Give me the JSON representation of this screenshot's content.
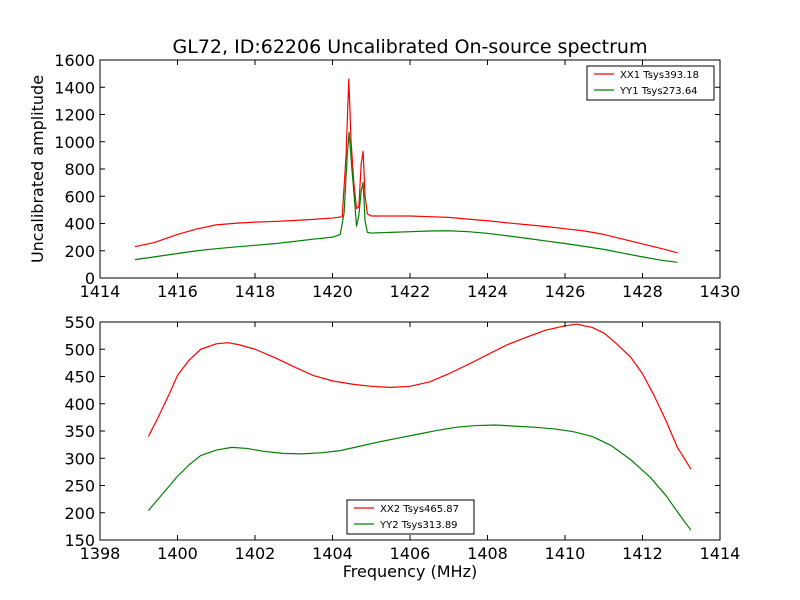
{
  "figure": {
    "title": "GL72, ID:62206 Uncalibrated On-source spectrum",
    "xlabel": "Frequency (MHz)"
  },
  "chart_data": [
    {
      "type": "line",
      "title": "GL72, ID:62206 Uncalibrated On-source spectrum",
      "xlabel": "",
      "ylabel": "Uncalibrated amplitude",
      "xlim": [
        1414,
        1430
      ],
      "ylim": [
        0,
        1600
      ],
      "xticks": [
        "1414",
        "1416",
        "1418",
        "1420",
        "1422",
        "1424",
        "1426",
        "1428",
        "1430"
      ],
      "yticks": [
        "0",
        "200",
        "400",
        "600",
        "800",
        "1000",
        "1200",
        "1400",
        "1600"
      ],
      "grid": false,
      "legend_position": "top-right",
      "series": [
        {
          "name": "XX1 Tsys393.18",
          "color": "#ff0000",
          "points": [
            [
              1414.9,
              230
            ],
            [
              1415.4,
              260
            ],
            [
              1416.0,
              320
            ],
            [
              1416.5,
              360
            ],
            [
              1417.0,
              390
            ],
            [
              1417.5,
              402
            ],
            [
              1418.0,
              410
            ],
            [
              1418.5,
              415
            ],
            [
              1419.0,
              422
            ],
            [
              1419.5,
              430
            ],
            [
              1420.0,
              440
            ],
            [
              1420.25,
              450
            ],
            [
              1420.35,
              900
            ],
            [
              1420.42,
              1460
            ],
            [
              1420.48,
              1000
            ],
            [
              1420.55,
              700
            ],
            [
              1420.62,
              510
            ],
            [
              1420.68,
              520
            ],
            [
              1420.74,
              840
            ],
            [
              1420.79,
              930
            ],
            [
              1420.84,
              600
            ],
            [
              1420.9,
              470
            ],
            [
              1421.0,
              455
            ],
            [
              1421.5,
              455
            ],
            [
              1422.0,
              455
            ],
            [
              1422.5,
              450
            ],
            [
              1423.0,
              445
            ],
            [
              1423.5,
              432
            ],
            [
              1424.0,
              420
            ],
            [
              1424.5,
              405
            ],
            [
              1425.0,
              392
            ],
            [
              1425.5,
              378
            ],
            [
              1426.0,
              362
            ],
            [
              1426.5,
              345
            ],
            [
              1427.0,
              320
            ],
            [
              1427.5,
              285
            ],
            [
              1428.0,
              250
            ],
            [
              1428.5,
              215
            ],
            [
              1428.9,
              185
            ]
          ]
        },
        {
          "name": "YY1 Tsys273.64",
          "color": "#008000",
          "points": [
            [
              1414.9,
              135
            ],
            [
              1415.4,
              155
            ],
            [
              1416.0,
              180
            ],
            [
              1416.5,
              200
            ],
            [
              1417.0,
              215
            ],
            [
              1417.5,
              228
            ],
            [
              1418.0,
              240
            ],
            [
              1418.5,
              252
            ],
            [
              1419.0,
              268
            ],
            [
              1419.5,
              285
            ],
            [
              1420.0,
              300
            ],
            [
              1420.2,
              320
            ],
            [
              1420.3,
              480
            ],
            [
              1420.38,
              900
            ],
            [
              1420.43,
              1070
            ],
            [
              1420.5,
              800
            ],
            [
              1420.56,
              600
            ],
            [
              1420.62,
              380
            ],
            [
              1420.68,
              460
            ],
            [
              1420.74,
              640
            ],
            [
              1420.79,
              700
            ],
            [
              1420.84,
              420
            ],
            [
              1420.9,
              335
            ],
            [
              1421.0,
              330
            ],
            [
              1421.5,
              335
            ],
            [
              1422.0,
              340
            ],
            [
              1422.5,
              345
            ],
            [
              1423.0,
              347
            ],
            [
              1423.5,
              340
            ],
            [
              1424.0,
              328
            ],
            [
              1424.5,
              310
            ],
            [
              1425.0,
              292
            ],
            [
              1425.5,
              272
            ],
            [
              1426.0,
              253
            ],
            [
              1426.5,
              232
            ],
            [
              1427.0,
              210
            ],
            [
              1427.5,
              182
            ],
            [
              1428.0,
              155
            ],
            [
              1428.5,
              130
            ],
            [
              1428.9,
              115
            ]
          ]
        }
      ]
    },
    {
      "type": "line",
      "title": "",
      "xlabel": "Frequency (MHz)",
      "ylabel": "",
      "xlim": [
        1398,
        1414
      ],
      "ylim": [
        150,
        550
      ],
      "xticks": [
        "1398",
        "1400",
        "1402",
        "1404",
        "1406",
        "1408",
        "1410",
        "1412",
        "1414"
      ],
      "yticks": [
        "150",
        "200",
        "250",
        "300",
        "350",
        "400",
        "450",
        "500",
        "550"
      ],
      "grid": false,
      "legend_position": "bottom-center",
      "series": [
        {
          "name": "XX2 Tsys465.87",
          "color": "#ff0000",
          "points": [
            [
              1399.25,
              340
            ],
            [
              1399.5,
              375
            ],
            [
              1399.8,
              420
            ],
            [
              1400.0,
              452
            ],
            [
              1400.3,
              480
            ],
            [
              1400.6,
              500
            ],
            [
              1401.0,
              510
            ],
            [
              1401.3,
              512
            ],
            [
              1401.6,
              508
            ],
            [
              1402.0,
              500
            ],
            [
              1402.5,
              485
            ],
            [
              1403.0,
              468
            ],
            [
              1403.5,
              452
            ],
            [
              1404.0,
              442
            ],
            [
              1404.5,
              436
            ],
            [
              1405.0,
              432
            ],
            [
              1405.5,
              430
            ],
            [
              1406.0,
              432
            ],
            [
              1406.5,
              440
            ],
            [
              1407.0,
              455
            ],
            [
              1407.5,
              472
            ],
            [
              1408.0,
              490
            ],
            [
              1408.5,
              508
            ],
            [
              1409.0,
              522
            ],
            [
              1409.5,
              535
            ],
            [
              1410.0,
              543
            ],
            [
              1410.3,
              546
            ],
            [
              1410.7,
              540
            ],
            [
              1411.0,
              530
            ],
            [
              1411.3,
              512
            ],
            [
              1411.7,
              485
            ],
            [
              1412.0,
              455
            ],
            [
              1412.3,
              415
            ],
            [
              1412.6,
              370
            ],
            [
              1412.9,
              320
            ],
            [
              1413.25,
              280
            ]
          ]
        },
        {
          "name": "YY2 Tsys313.89",
          "color": "#008000",
          "points": [
            [
              1399.25,
              204
            ],
            [
              1399.5,
              225
            ],
            [
              1399.8,
              250
            ],
            [
              1400.0,
              267
            ],
            [
              1400.3,
              288
            ],
            [
              1400.6,
              305
            ],
            [
              1401.0,
              315
            ],
            [
              1401.4,
              320
            ],
            [
              1401.8,
              318
            ],
            [
              1402.2,
              313
            ],
            [
              1402.7,
              309
            ],
            [
              1403.2,
              308
            ],
            [
              1403.7,
              310
            ],
            [
              1404.2,
              314
            ],
            [
              1404.7,
              322
            ],
            [
              1405.2,
              330
            ],
            [
              1405.7,
              337
            ],
            [
              1406.2,
              344
            ],
            [
              1406.7,
              351
            ],
            [
              1407.2,
              357
            ],
            [
              1407.7,
              360
            ],
            [
              1408.2,
              361
            ],
            [
              1408.7,
              359
            ],
            [
              1409.2,
              357
            ],
            [
              1409.7,
              354
            ],
            [
              1410.2,
              349
            ],
            [
              1410.7,
              340
            ],
            [
              1411.2,
              323
            ],
            [
              1411.7,
              297
            ],
            [
              1412.2,
              265
            ],
            [
              1412.6,
              232
            ],
            [
              1413.0,
              192
            ],
            [
              1413.25,
              168
            ]
          ]
        }
      ]
    }
  ]
}
